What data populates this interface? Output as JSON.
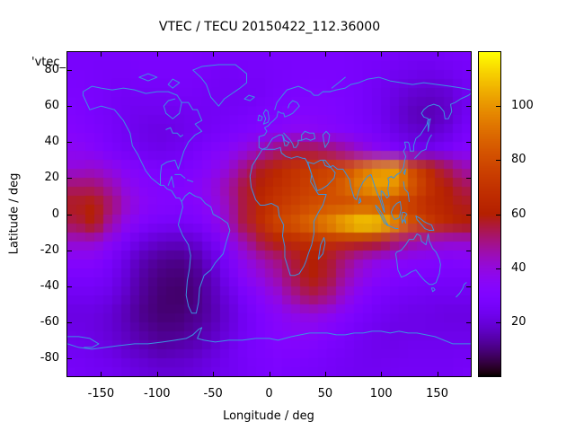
{
  "title": "VTEC / TECU 20150422_112.36000",
  "stray_label": "'vtec_",
  "axes": {
    "x": {
      "label": "Longitude / deg",
      "range": [
        -180,
        180
      ],
      "ticks": [
        -150,
        -100,
        -50,
        0,
        50,
        100,
        150
      ]
    },
    "y": {
      "label": "Latitude / deg",
      "range": [
        -90,
        90
      ],
      "ticks": [
        80,
        60,
        40,
        20,
        0,
        -20,
        -40,
        -60,
        -80
      ]
    }
  },
  "colorbar": {
    "range": [
      0,
      120
    ],
    "ticks": [
      20,
      40,
      60,
      80,
      100
    ],
    "palette": "pm3d black-violet-red-yellow"
  },
  "colors": {
    "background": "#ffffff",
    "border": "#000000",
    "text": "#000000",
    "coastline": "#3b93e0"
  },
  "chart_data": {
    "type": "heatmap",
    "title": "VTEC / TECU 20150422_112.36000",
    "xlabel": "Longitude / deg",
    "ylabel": "Latitude / deg",
    "value_unit": "TECU",
    "zrange": [
      0,
      120
    ],
    "grid": false,
    "overlay": "world coastlines",
    "lon_centers": [
      -172.5,
      -157.5,
      -142.5,
      -127.5,
      -112.5,
      -97.5,
      -82.5,
      -67.5,
      -52.5,
      -37.5,
      -22.5,
      -7.5,
      7.5,
      22.5,
      37.5,
      52.5,
      67.5,
      82.5,
      97.5,
      112.5,
      127.5,
      142.5,
      157.5,
      172.5
    ],
    "lat_centers": [
      85,
      75,
      65,
      55,
      45,
      35,
      25,
      15,
      5,
      -5,
      -15,
      -25,
      -35,
      -45,
      -55,
      -65,
      -75,
      -85
    ],
    "values": [
      [
        27,
        27,
        27,
        27,
        28,
        28,
        28,
        28,
        27,
        27,
        27,
        27,
        28,
        28,
        28,
        28,
        28,
        27,
        27,
        26,
        25,
        25,
        26,
        27
      ],
      [
        28,
        27,
        26,
        26,
        27,
        27,
        27,
        27,
        26,
        25,
        26,
        26,
        27,
        28,
        29,
        29,
        28,
        27,
        25,
        23,
        22,
        21,
        22,
        25
      ],
      [
        29,
        28,
        26,
        25,
        25,
        25,
        26,
        26,
        25,
        25,
        25,
        26,
        28,
        29,
        30,
        30,
        29,
        27,
        24,
        21,
        18,
        17,
        18,
        23
      ],
      [
        30,
        28,
        26,
        24,
        23,
        23,
        23,
        24,
        25,
        26,
        27,
        29,
        30,
        32,
        32,
        31,
        29,
        27,
        24,
        20,
        16,
        15,
        17,
        24
      ],
      [
        32,
        30,
        27,
        24,
        22,
        21,
        22,
        24,
        26,
        28,
        30,
        32,
        34,
        36,
        36,
        34,
        32,
        29,
        26,
        22,
        19,
        18,
        21,
        27
      ],
      [
        36,
        33,
        29,
        26,
        24,
        23,
        24,
        27,
        30,
        34,
        39,
        45,
        51,
        55,
        55,
        52,
        47,
        41,
        35,
        30,
        26,
        25,
        28,
        32
      ],
      [
        40,
        42,
        38,
        33,
        30,
        28,
        28,
        30,
        34,
        40,
        50,
        58,
        64,
        70,
        74,
        77,
        80,
        92,
        100,
        102,
        80,
        66,
        54,
        46
      ],
      [
        52,
        52,
        46,
        38,
        33,
        31,
        31,
        33,
        38,
        46,
        56,
        62,
        68,
        72,
        76,
        80,
        88,
        98,
        104,
        100,
        84,
        70,
        60,
        54
      ],
      [
        58,
        62,
        52,
        42,
        35,
        32,
        31,
        32,
        36,
        44,
        56,
        66,
        72,
        76,
        80,
        82,
        80,
        82,
        80,
        74,
        72,
        66,
        62,
        58
      ],
      [
        54,
        60,
        46,
        36,
        30,
        27,
        26,
        28,
        33,
        42,
        56,
        68,
        78,
        84,
        90,
        98,
        108,
        115,
        112,
        100,
        84,
        74,
        66,
        60
      ],
      [
        42,
        42,
        35,
        27,
        21,
        18,
        17,
        19,
        25,
        34,
        46,
        56,
        62,
        66,
        68,
        68,
        66,
        62,
        58,
        52,
        47,
        44,
        42,
        42
      ],
      [
        33,
        33,
        28,
        21,
        15,
        12,
        11,
        13,
        20,
        28,
        38,
        45,
        50,
        56,
        60,
        57,
        50,
        43,
        38,
        35,
        33,
        32,
        31,
        32
      ],
      [
        28,
        28,
        25,
        19,
        13,
        10,
        9,
        11,
        16,
        25,
        34,
        40,
        46,
        54,
        60,
        56,
        46,
        38,
        33,
        30,
        29,
        28,
        27,
        27
      ],
      [
        24,
        24,
        22,
        17,
        12,
        9,
        8,
        10,
        15,
        21,
        28,
        34,
        40,
        48,
        54,
        50,
        40,
        32,
        28,
        26,
        25,
        24,
        24,
        24
      ],
      [
        21,
        21,
        19,
        15,
        11,
        9,
        9,
        11,
        14,
        19,
        25,
        30,
        34,
        38,
        40,
        37,
        32,
        28,
        25,
        23,
        22,
        22,
        21,
        21
      ],
      [
        22,
        21,
        19,
        16,
        13,
        11,
        11,
        13,
        16,
        20,
        25,
        29,
        32,
        34,
        34,
        31,
        28,
        25,
        23,
        22,
        22,
        22,
        22,
        22
      ],
      [
        24,
        23,
        21,
        18,
        16,
        14,
        15,
        16,
        19,
        23,
        27,
        29,
        31,
        31,
        30,
        28,
        26,
        24,
        23,
        23,
        24,
        24,
        24,
        24
      ],
      [
        26,
        25,
        24,
        22,
        20,
        19,
        19,
        20,
        22,
        24,
        26,
        28,
        29,
        28,
        27,
        26,
        25,
        24,
        24,
        25,
        25,
        25,
        25,
        26
      ]
    ]
  }
}
